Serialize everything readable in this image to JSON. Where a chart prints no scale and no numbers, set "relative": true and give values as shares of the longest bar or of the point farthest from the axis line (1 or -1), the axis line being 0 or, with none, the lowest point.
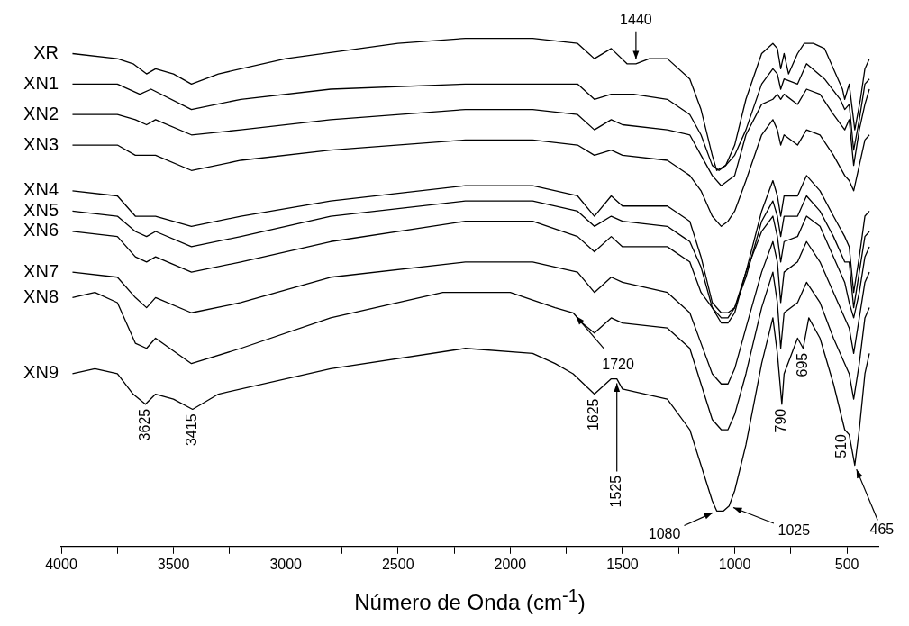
{
  "chart_data": {
    "type": "line",
    "relative": true,
    "xlabel": "Número de Onda (cm$^{-1}$)",
    "xlim": [
      4000,
      360
    ],
    "xticks": [
      4000,
      {
        "value": 3750,
        "label": null
      },
      3500,
      {
        "value": 3250,
        "label": null
      },
      3000,
      {
        "value": 2750,
        "label": null
      },
      2500,
      {
        "value": 2250,
        "label": null
      },
      2000,
      {
        "value": 1750,
        "label": null
      },
      1500,
      {
        "value": 1250,
        "label": null
      },
      1000,
      {
        "value": 750,
        "label": null
      },
      500
    ],
    "tick_labels": "x",
    "grid": false,
    "legend": false,
    "marker": "none",
    "line_style": "solid",
    "series": [
      {
        "name": "XR",
        "color": "#000000",
        "x": [
          3950,
          3750,
          3680,
          3620,
          3580,
          3500,
          3420,
          3300,
          3000,
          2500,
          2200,
          1900,
          1700,
          1650,
          1625,
          1550,
          1480,
          1440,
          1380,
          1300,
          1200,
          1150,
          1100,
          1080,
          1040,
          1000,
          950,
          880,
          830,
          810,
          795,
          780,
          760,
          720,
          690,
          650,
          600,
          560,
          520,
          510,
          490,
          465,
          440,
          420,
          400
        ],
        "values": [
          0.97,
          0.96,
          0.95,
          0.93,
          0.94,
          0.93,
          0.91,
          0.93,
          0.96,
          0.99,
          1.0,
          1.0,
          0.99,
          0.97,
          0.96,
          0.98,
          0.95,
          0.95,
          0.96,
          0.96,
          0.92,
          0.86,
          0.77,
          0.74,
          0.75,
          0.79,
          0.88,
          0.97,
          0.99,
          0.98,
          0.94,
          0.97,
          0.93,
          0.97,
          0.99,
          0.99,
          0.98,
          0.94,
          0.9,
          0.88,
          0.91,
          0.82,
          0.88,
          0.94,
          0.96
        ]
      },
      {
        "name": "XN1",
        "color": "#000000",
        "x": [
          3950,
          3750,
          3650,
          3600,
          3420,
          3200,
          2800,
          2200,
          1800,
          1700,
          1625,
          1550,
          1450,
          1300,
          1200,
          1150,
          1100,
          1070,
          1040,
          1000,
          950,
          880,
          830,
          810,
          795,
          780,
          720,
          680,
          600,
          530,
          510,
          490,
          470,
          445,
          420,
          400
        ],
        "values": [
          0.91,
          0.91,
          0.89,
          0.9,
          0.86,
          0.88,
          0.9,
          0.91,
          0.91,
          0.91,
          0.88,
          0.89,
          0.89,
          0.88,
          0.85,
          0.81,
          0.75,
          0.74,
          0.75,
          0.77,
          0.82,
          0.91,
          0.94,
          0.93,
          0.9,
          0.92,
          0.91,
          0.95,
          0.92,
          0.88,
          0.86,
          0.87,
          0.78,
          0.84,
          0.91,
          0.92
        ]
      },
      {
        "name": "XN2",
        "color": "#000000",
        "x": [
          3950,
          3750,
          3670,
          3620,
          3580,
          3420,
          3200,
          2800,
          2200,
          1900,
          1700,
          1625,
          1550,
          1500,
          1300,
          1200,
          1150,
          1100,
          1060,
          1030,
          1000,
          950,
          880,
          830,
          810,
          795,
          780,
          720,
          680,
          620,
          560,
          510,
          490,
          470,
          445,
          420,
          400
        ],
        "values": [
          0.85,
          0.85,
          0.84,
          0.83,
          0.84,
          0.81,
          0.82,
          0.84,
          0.86,
          0.86,
          0.85,
          0.82,
          0.84,
          0.83,
          0.82,
          0.81,
          0.77,
          0.73,
          0.71,
          0.72,
          0.73,
          0.81,
          0.87,
          0.88,
          0.89,
          0.88,
          0.89,
          0.87,
          0.9,
          0.89,
          0.85,
          0.82,
          0.84,
          0.75,
          0.82,
          0.87,
          0.9
        ]
      },
      {
        "name": "XN3",
        "color": "#000000",
        "x": [
          3950,
          3750,
          3670,
          3620,
          3580,
          3420,
          3200,
          2800,
          2200,
          1900,
          1700,
          1625,
          1550,
          1500,
          1300,
          1200,
          1150,
          1100,
          1060,
          1030,
          1000,
          950,
          880,
          830,
          810,
          795,
          780,
          720,
          680,
          620,
          560,
          510,
          490,
          470,
          445,
          420,
          400
        ],
        "values": [
          0.79,
          0.79,
          0.77,
          0.77,
          0.77,
          0.74,
          0.76,
          0.78,
          0.8,
          0.8,
          0.79,
          0.77,
          0.78,
          0.77,
          0.76,
          0.73,
          0.7,
          0.65,
          0.63,
          0.64,
          0.66,
          0.72,
          0.81,
          0.84,
          0.82,
          0.79,
          0.81,
          0.79,
          0.82,
          0.81,
          0.77,
          0.73,
          0.72,
          0.7,
          0.75,
          0.8,
          0.81
        ]
      },
      {
        "name": "XN4",
        "color": "#000000",
        "x": [
          3950,
          3750,
          3670,
          3620,
          3580,
          3420,
          3200,
          2800,
          2200,
          1900,
          1700,
          1625,
          1550,
          1500,
          1300,
          1200,
          1150,
          1100,
          1060,
          1030,
          1000,
          950,
          880,
          830,
          810,
          795,
          780,
          720,
          680,
          620,
          560,
          510,
          490,
          470,
          445,
          420,
          400
        ],
        "values": [
          0.7,
          0.69,
          0.65,
          0.65,
          0.65,
          0.63,
          0.65,
          0.68,
          0.71,
          0.71,
          0.69,
          0.65,
          0.69,
          0.67,
          0.67,
          0.64,
          0.57,
          0.48,
          0.46,
          0.46,
          0.47,
          0.54,
          0.66,
          0.72,
          0.69,
          0.65,
          0.69,
          0.69,
          0.73,
          0.7,
          0.65,
          0.61,
          0.59,
          0.5,
          0.57,
          0.65,
          0.66
        ]
      },
      {
        "name": "XN5",
        "color": "#000000",
        "x": [
          3950,
          3750,
          3670,
          3620,
          3580,
          3420,
          3200,
          2800,
          2200,
          1900,
          1700,
          1625,
          1550,
          1500,
          1300,
          1200,
          1150,
          1100,
          1060,
          1030,
          1000,
          950,
          880,
          830,
          810,
          795,
          780,
          720,
          680,
          620,
          560,
          510,
          490,
          470,
          445,
          420,
          400
        ],
        "values": [
          0.66,
          0.65,
          0.62,
          0.61,
          0.62,
          0.59,
          0.61,
          0.65,
          0.68,
          0.68,
          0.66,
          0.63,
          0.65,
          0.64,
          0.63,
          0.6,
          0.55,
          0.47,
          0.45,
          0.45,
          0.47,
          0.53,
          0.64,
          0.68,
          0.65,
          0.61,
          0.65,
          0.65,
          0.69,
          0.66,
          0.61,
          0.56,
          0.56,
          0.47,
          0.54,
          0.61,
          0.62
        ]
      },
      {
        "name": "XN6",
        "color": "#000000",
        "x": [
          3950,
          3750,
          3670,
          3620,
          3580,
          3420,
          3200,
          2800,
          2200,
          1900,
          1700,
          1625,
          1550,
          1500,
          1300,
          1200,
          1150,
          1100,
          1060,
          1030,
          1000,
          950,
          880,
          830,
          810,
          795,
          780,
          720,
          680,
          620,
          560,
          510,
          490,
          470,
          445,
          420,
          400
        ],
        "values": [
          0.62,
          0.61,
          0.57,
          0.56,
          0.57,
          0.54,
          0.56,
          0.6,
          0.64,
          0.64,
          0.61,
          0.58,
          0.61,
          0.59,
          0.59,
          0.56,
          0.5,
          0.47,
          0.44,
          0.44,
          0.46,
          0.54,
          0.62,
          0.65,
          0.61,
          0.56,
          0.6,
          0.61,
          0.65,
          0.63,
          0.57,
          0.52,
          0.48,
          0.45,
          0.5,
          0.57,
          0.59
        ]
      },
      {
        "name": "XN7",
        "color": "#000000",
        "x": [
          3950,
          3750,
          3670,
          3620,
          3580,
          3420,
          3200,
          2800,
          2200,
          1900,
          1700,
          1625,
          1550,
          1500,
          1300,
          1200,
          1150,
          1100,
          1060,
          1030,
          1000,
          950,
          880,
          830,
          810,
          795,
          780,
          720,
          680,
          620,
          560,
          510,
          490,
          470,
          445,
          420,
          400
        ],
        "values": [
          0.54,
          0.53,
          0.49,
          0.47,
          0.49,
          0.46,
          0.48,
          0.53,
          0.56,
          0.56,
          0.54,
          0.5,
          0.53,
          0.52,
          0.5,
          0.46,
          0.4,
          0.34,
          0.32,
          0.32,
          0.35,
          0.43,
          0.54,
          0.6,
          0.56,
          0.48,
          0.54,
          0.56,
          0.6,
          0.56,
          0.5,
          0.45,
          0.43,
          0.38,
          0.45,
          0.52,
          0.54
        ]
      },
      {
        "name": "XN8",
        "color": "#000000",
        "x": [
          3950,
          3850,
          3750,
          3670,
          3620,
          3580,
          3420,
          3200,
          2800,
          2300,
          2000,
          1800,
          1720,
          1680,
          1625,
          1550,
          1500,
          1300,
          1200,
          1150,
          1100,
          1060,
          1030,
          1000,
          950,
          880,
          830,
          810,
          795,
          780,
          720,
          680,
          620,
          560,
          510,
          490,
          470,
          445,
          420,
          400
        ],
        "values": [
          0.49,
          0.5,
          0.48,
          0.4,
          0.39,
          0.41,
          0.36,
          0.39,
          0.45,
          0.5,
          0.5,
          0.47,
          0.46,
          0.44,
          0.42,
          0.45,
          0.44,
          0.43,
          0.39,
          0.32,
          0.25,
          0.23,
          0.23,
          0.26,
          0.34,
          0.47,
          0.54,
          0.48,
          0.39,
          0.46,
          0.48,
          0.52,
          0.48,
          0.41,
          0.36,
          0.34,
          0.29,
          0.36,
          0.45,
          0.47
        ]
      },
      {
        "name": "XN9",
        "color": "#000000",
        "x": [
          3950,
          3850,
          3750,
          3680,
          3625,
          3580,
          3500,
          3415,
          3300,
          2800,
          2200,
          1900,
          1800,
          1720,
          1625,
          1550,
          1525,
          1500,
          1300,
          1200,
          1150,
          1100,
          1080,
          1050,
          1025,
          1000,
          950,
          880,
          830,
          810,
          790,
          780,
          720,
          695,
          670,
          620,
          560,
          510,
          490,
          465,
          445,
          420,
          400
        ],
        "values": [
          0.34,
          0.35,
          0.34,
          0.3,
          0.28,
          0.3,
          0.29,
          0.27,
          0.3,
          0.35,
          0.39,
          0.38,
          0.36,
          0.34,
          0.3,
          0.33,
          0.33,
          0.31,
          0.29,
          0.23,
          0.16,
          0.09,
          0.07,
          0.07,
          0.08,
          0.11,
          0.2,
          0.36,
          0.45,
          0.38,
          0.28,
          0.34,
          0.41,
          0.39,
          0.45,
          0.41,
          0.32,
          0.23,
          0.22,
          0.16,
          0.23,
          0.34,
          0.38
        ]
      }
    ],
    "annotations": [
      {
        "text": "1440",
        "x": 1440,
        "y": 0.95
      },
      {
        "text": "3625",
        "x": 3625,
        "y": 0.28
      },
      {
        "text": "3415",
        "x": 3415,
        "y": 0.27
      },
      {
        "text": "1720",
        "x": 1720,
        "y": 0.46
      },
      {
        "text": "1625",
        "x": 1625,
        "y": 0.3
      },
      {
        "text": "1525",
        "x": 1525,
        "y": 0.33
      },
      {
        "text": "1080",
        "x": 1080,
        "y": 0.07
      },
      {
        "text": "1025",
        "x": 1025,
        "y": 0.08
      },
      {
        "text": "790",
        "x": 790,
        "y": 0.28
      },
      {
        "text": "695",
        "x": 695,
        "y": 0.39
      },
      {
        "text": "510",
        "x": 510,
        "y": 0.23
      },
      {
        "text": "465",
        "x": 465,
        "y": 0.16
      }
    ]
  }
}
